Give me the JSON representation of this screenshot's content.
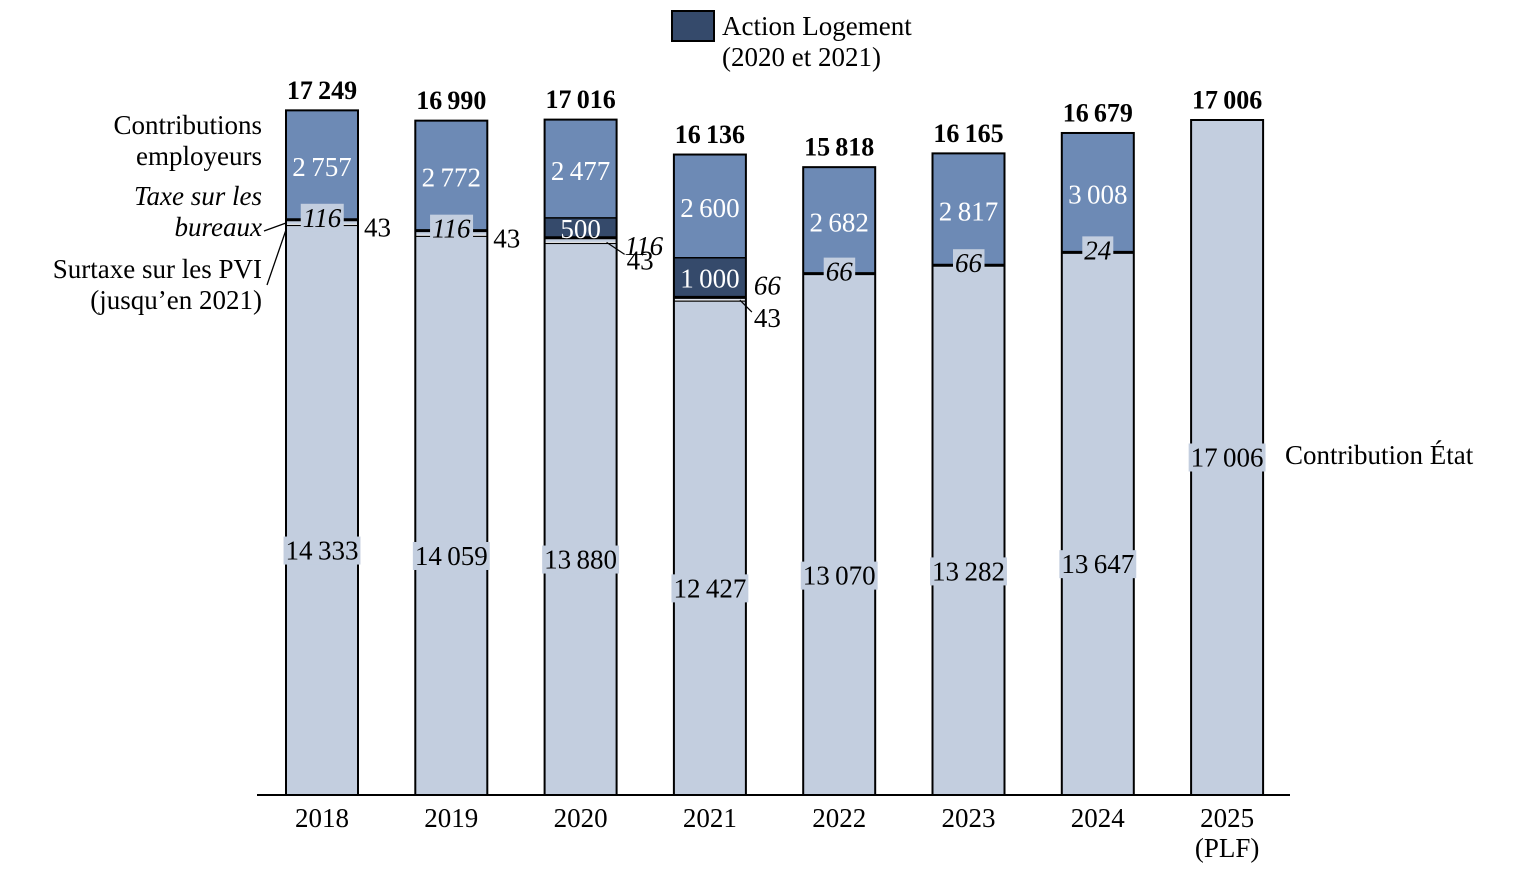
{
  "chart_data": {
    "type": "bar",
    "stacked": true,
    "categories": [
      "2018",
      "2019",
      "2020",
      "2021",
      "2022",
      "2023",
      "2024",
      "2025\n(PLF)"
    ],
    "series": [
      {
        "name": "Contribution État",
        "values": [
          14333,
          14059,
          13880,
          12427,
          13070,
          13282,
          13647,
          17006
        ]
      },
      {
        "name": "Surtaxe sur les PVI (jusqu’en 2021)",
        "values": [
          43,
          43,
          43,
          43,
          0,
          0,
          0,
          0
        ]
      },
      {
        "name": "Taxe sur les bureaux",
        "values": [
          116,
          116,
          116,
          66,
          66,
          66,
          24,
          0
        ]
      },
      {
        "name": "Action Logement (2020 et 2021)",
        "values": [
          0,
          0,
          500,
          1000,
          0,
          0,
          0,
          0
        ]
      },
      {
        "name": "Contributions employeurs",
        "values": [
          2757,
          2772,
          2477,
          2600,
          2682,
          2817,
          3008,
          0
        ]
      }
    ],
    "totals": [
      17249,
      16990,
      17016,
      16136,
      15818,
      16165,
      16679,
      17006
    ],
    "colors": {
      "etat": "#c3cedf",
      "employeurs": "#6d8ab5",
      "action_logement": "#354a6b",
      "pvi": "#000000",
      "outline": "#000000"
    },
    "ylim": [
      0,
      18000
    ],
    "grid": false,
    "legend_position": "top"
  },
  "labels": {
    "legend_line1": "Action Logement",
    "legend_line2": "(2020 et 2021)",
    "employeurs_line1": "Contributions",
    "employeurs_line2": "employeurs",
    "taxe_line1": "Taxe sur les",
    "taxe_line2": "bureaux",
    "pvi_line1": "Surtaxe sur les PVI",
    "pvi_line2": "(jusqu’en 2021)",
    "etat": "Contribution État"
  }
}
